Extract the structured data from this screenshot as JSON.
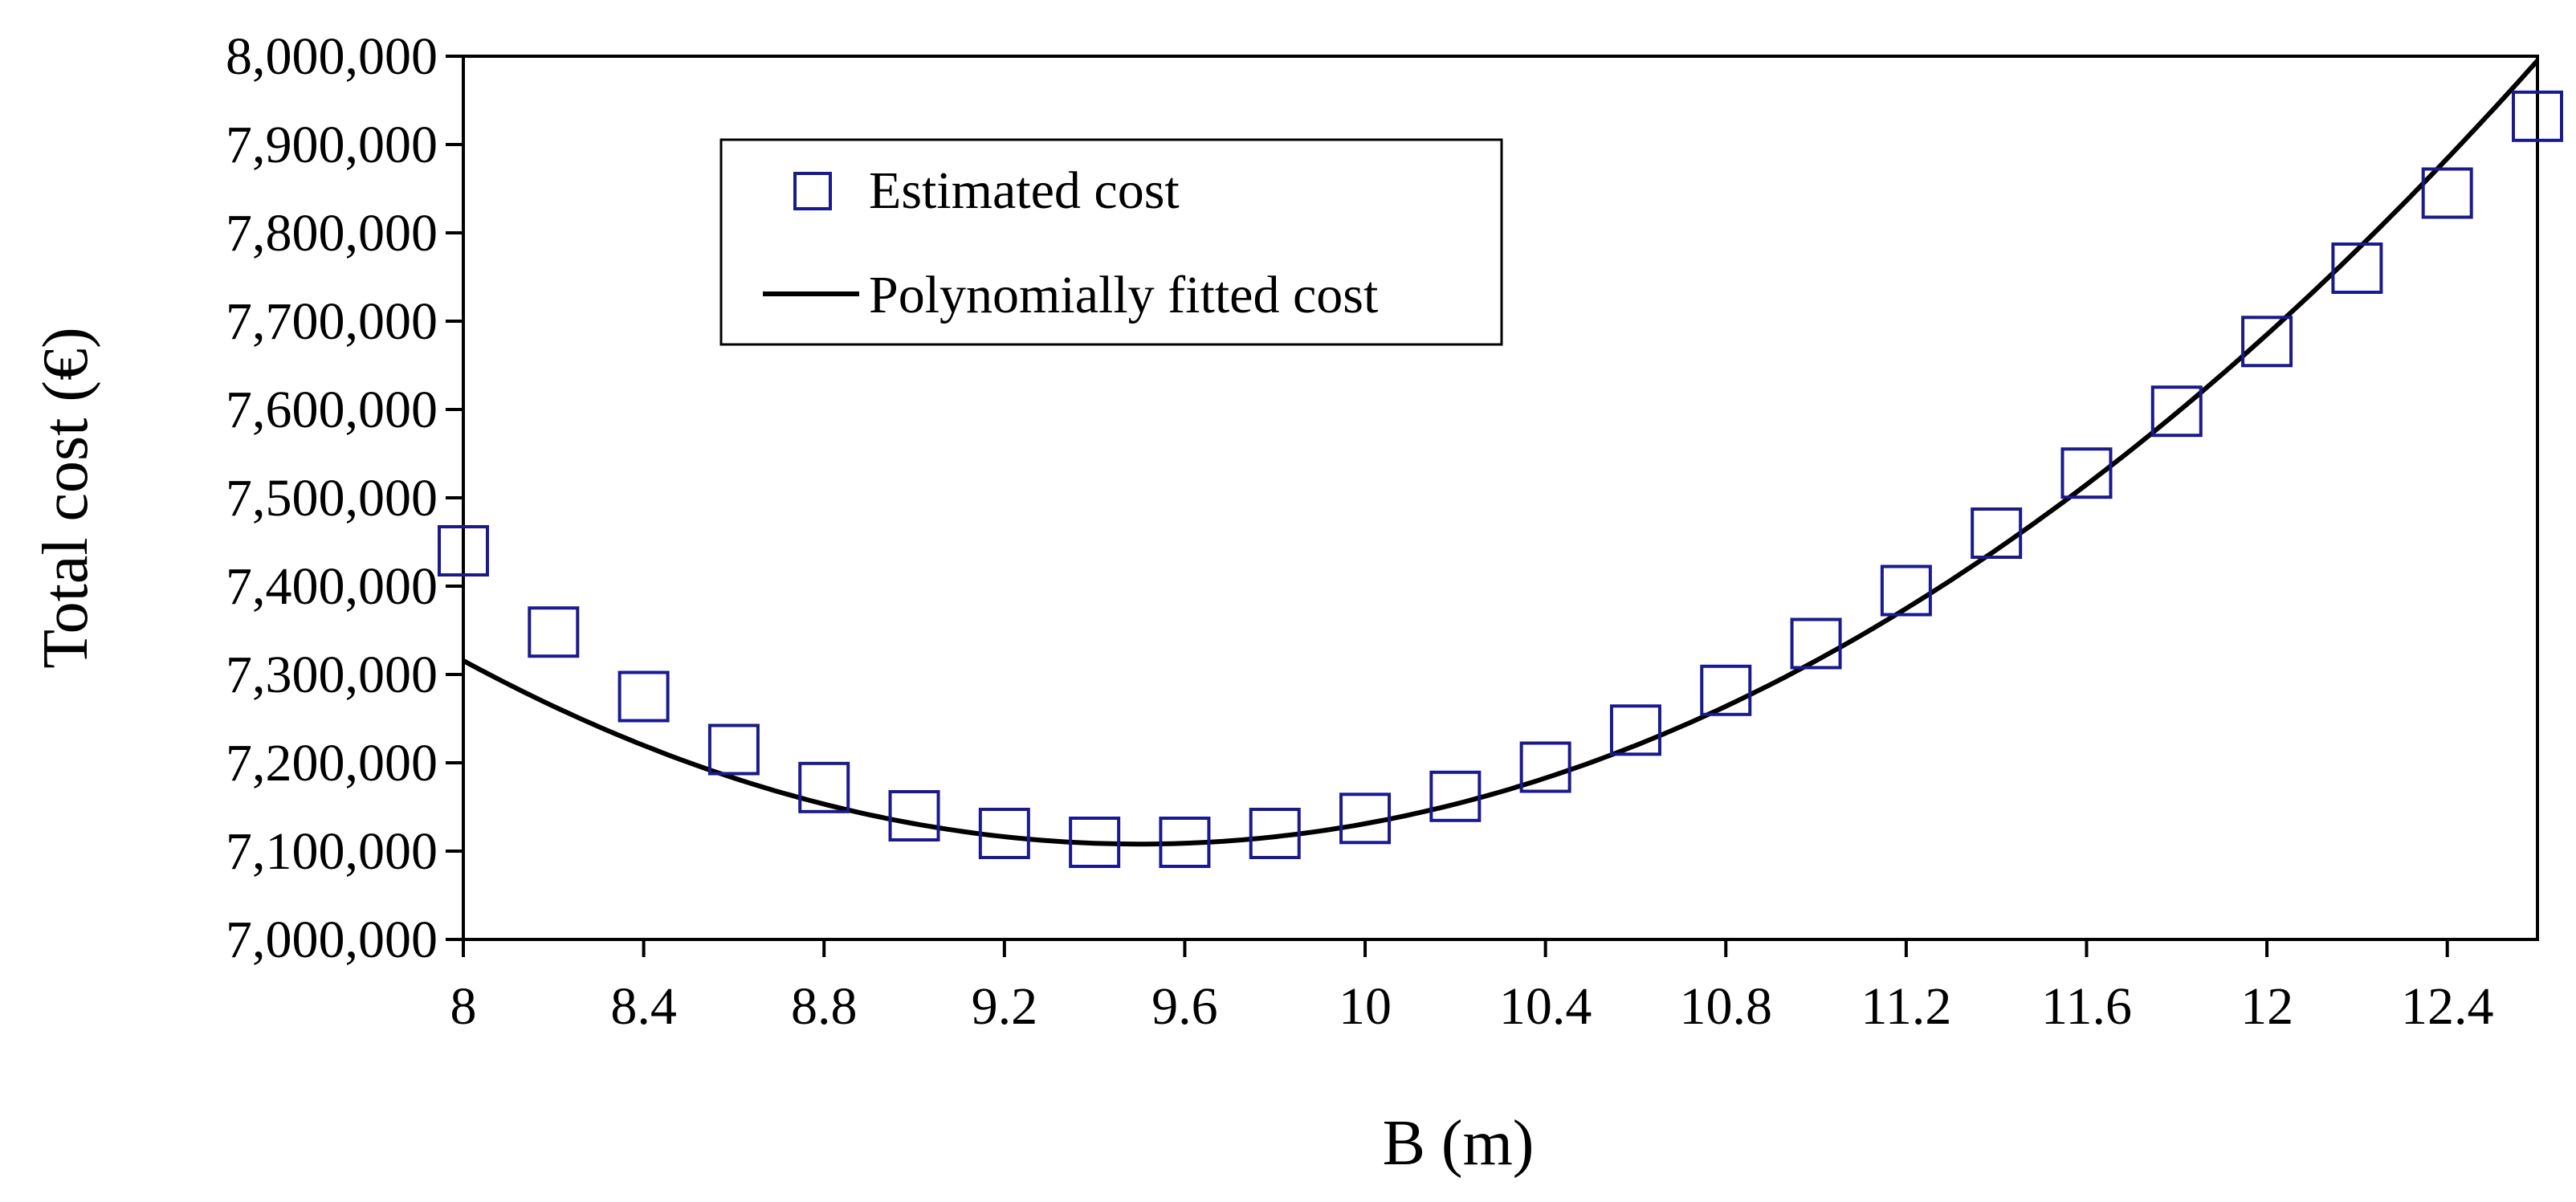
{
  "chart_data": {
    "type": "scatter",
    "title": "",
    "xlabel": "B (m)",
    "ylabel": "Total cost (€)",
    "xlim": [
      8,
      12.6
    ],
    "ylim": [
      7000000,
      8000000
    ],
    "x_ticks": [
      8,
      8.4,
      8.8,
      9.2,
      9.6,
      10,
      10.4,
      10.8,
      11.2,
      11.6,
      12,
      12.4
    ],
    "x_tick_labels": [
      "8",
      "8.4",
      "8.8",
      "9.2",
      "9.6",
      "10",
      "10.4",
      "10.8",
      "11.2",
      "11.6",
      "12",
      "12.4"
    ],
    "y_ticks": [
      7000000,
      7100000,
      7200000,
      7300000,
      7400000,
      7500000,
      7600000,
      7700000,
      7800000,
      7900000,
      8000000
    ],
    "y_tick_labels": [
      "7,000,000",
      "7,100,000",
      "7,200,000",
      "7,300,000",
      "7,400,000",
      "7,500,000",
      "7,600,000",
      "7,700,000",
      "7,800,000",
      "7,900,000",
      "8,000,000"
    ],
    "grid": false,
    "legend_position": "top-left",
    "series": [
      {
        "name": "Estimated cost",
        "kind": "markers",
        "marker": "hollow-square",
        "color": "#1a1a8c",
        "x": [
          8.0,
          8.2,
          8.4,
          8.6,
          8.8,
          9.0,
          9.2,
          9.4,
          9.6,
          9.8,
          10.0,
          10.2,
          10.4,
          10.6,
          10.8,
          11.0,
          11.2,
          11.4,
          11.6,
          11.8,
          12.0,
          12.2,
          12.4,
          12.6
        ],
        "y": [
          7440000,
          7348000,
          7275000,
          7215000,
          7172000,
          7140000,
          7120000,
          7110000,
          7110000,
          7120000,
          7137000,
          7162000,
          7195000,
          7237000,
          7282000,
          7335000,
          7395000,
          7460000,
          7528000,
          7598000,
          7677000,
          7760000,
          7845000,
          7932000
        ]
      },
      {
        "name": "Polynomially fitted cost",
        "kind": "line",
        "color": "#000000",
        "polynomial": {
          "form": "a*(x-h)^2 + k",
          "a": 92300,
          "h": 9.5,
          "k": 7108000
        }
      }
    ]
  }
}
